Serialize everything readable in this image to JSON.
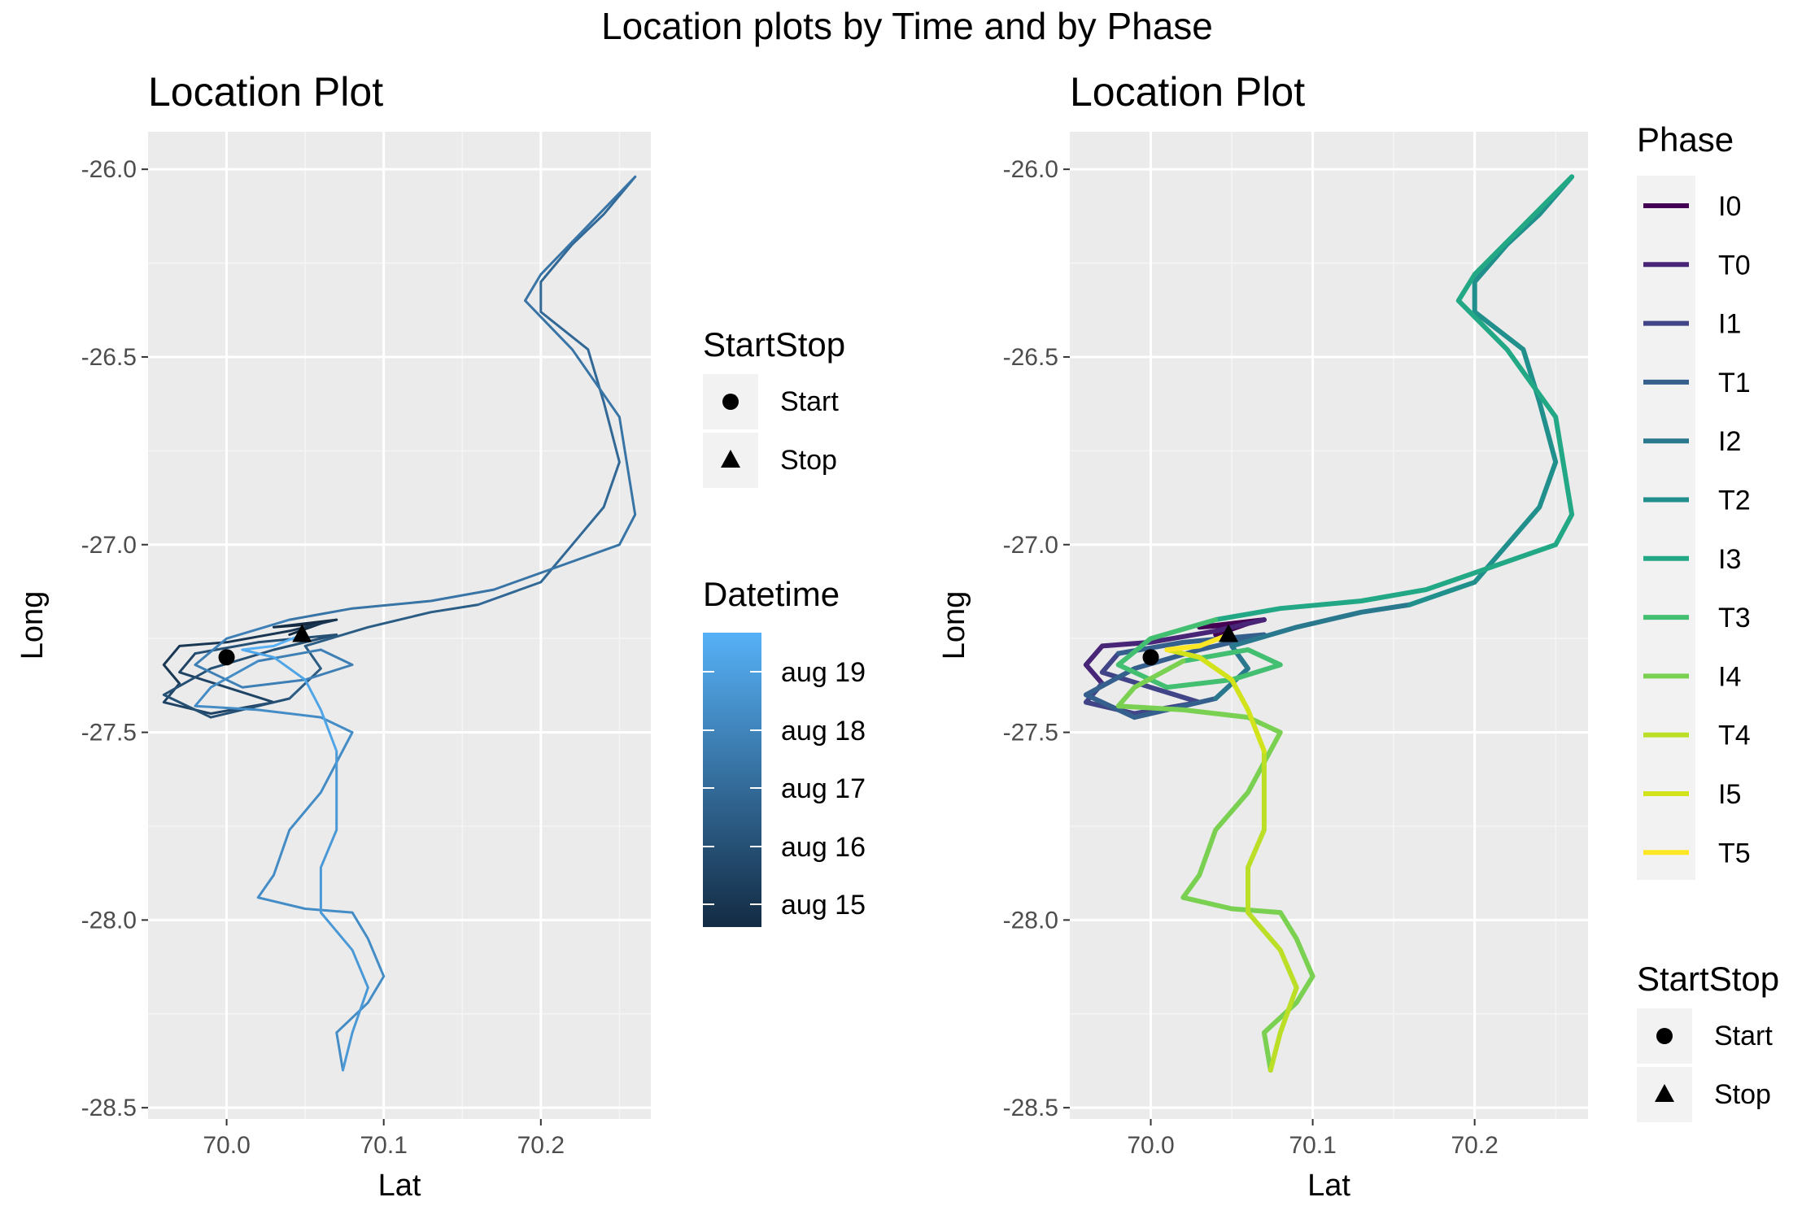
{
  "figure": {
    "title": "Location plots by Time and by Phase"
  },
  "chart_data": [
    {
      "type": "line",
      "title": "Location Plot",
      "xlabel": "Lat",
      "ylabel": "Long",
      "xlim": [
        69.95,
        70.27
      ],
      "ylim": [
        -28.53,
        -25.9
      ],
      "x_ticks": [
        "70.0",
        "70.1",
        "70.2"
      ],
      "x_tick_values": [
        70.0,
        70.1,
        70.2
      ],
      "y_ticks": [
        "-26.0",
        "-26.5",
        "-27.0",
        "-27.5",
        "-28.0",
        "-28.5"
      ],
      "y_tick_values": [
        -26.0,
        -26.5,
        -27.0,
        -27.5,
        -28.0,
        -28.5
      ],
      "grid": true,
      "color_by": "Datetime",
      "legend_position": "right",
      "legends": {
        "startstop": {
          "title": "StartStop",
          "items": [
            "Start",
            "Stop"
          ]
        },
        "datetime": {
          "title": "Datetime",
          "labels": [
            "aug 19",
            "aug 18",
            "aug 17",
            "aug 16",
            "aug 15"
          ],
          "colors": {
            "low": "#132B43",
            "high": "#56B1F7"
          }
        }
      },
      "points": [
        {
          "name": "Start",
          "shape": "circle",
          "x": 70.0,
          "y": -27.3
        },
        {
          "name": "Stop",
          "shape": "triangle",
          "x": 70.048,
          "y": -27.24
        }
      ]
    },
    {
      "type": "line",
      "title": "Location Plot",
      "xlabel": "Lat",
      "ylabel": "Long",
      "xlim": [
        69.95,
        70.27
      ],
      "ylim": [
        -28.53,
        -25.9
      ],
      "x_ticks": [
        "70.0",
        "70.1",
        "70.2"
      ],
      "x_tick_values": [
        70.0,
        70.1,
        70.2
      ],
      "y_ticks": [
        "-26.0",
        "-26.5",
        "-27.0",
        "-27.5",
        "-28.0",
        "-28.5"
      ],
      "y_tick_values": [
        -26.0,
        -26.5,
        -27.0,
        -27.5,
        -28.0,
        -28.5
      ],
      "grid": true,
      "color_by": "Phase",
      "legend_position": "right",
      "legends": {
        "phase": {
          "title": "Phase",
          "items": [
            {
              "label": "I0",
              "color": "#440154"
            },
            {
              "label": "T0",
              "color": "#482576"
            },
            {
              "label": "I1",
              "color": "#414487"
            },
            {
              "label": "T1",
              "color": "#35608D"
            },
            {
              "label": "I2",
              "color": "#2A788E"
            },
            {
              "label": "T2",
              "color": "#21908C"
            },
            {
              "label": "I3",
              "color": "#22A884"
            },
            {
              "label": "T3",
              "color": "#43BF71"
            },
            {
              "label": "I4",
              "color": "#7AD151"
            },
            {
              "label": "T4",
              "color": "#BBDF27"
            },
            {
              "label": "I5",
              "color": "#D2E21B"
            },
            {
              "label": "T5",
              "color": "#FDE725"
            }
          ]
        },
        "startstop": {
          "title": "StartStop",
          "items": [
            "Start",
            "Stop"
          ]
        }
      },
      "points": [
        {
          "name": "Start",
          "shape": "circle",
          "x": 70.0,
          "y": -27.3
        },
        {
          "name": "Stop",
          "shape": "triangle",
          "x": 70.048,
          "y": -27.24
        }
      ]
    }
  ]
}
